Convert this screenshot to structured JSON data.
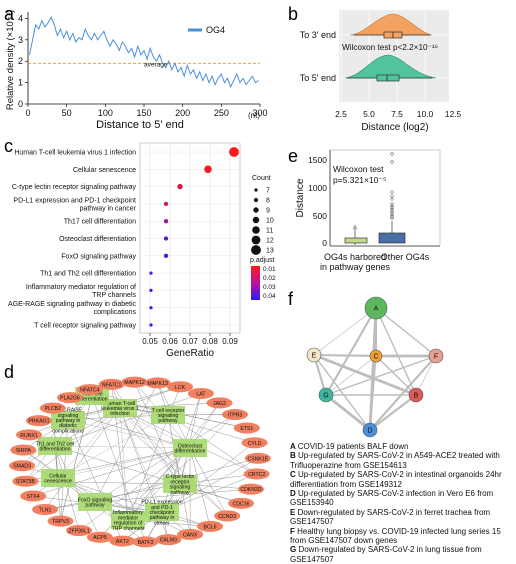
{
  "panels": {
    "a": {
      "letter": "a",
      "ylabel": "Relative density (×10⁻³)",
      "xlabel": "Distance to 5' end",
      "xunit": "(nt)",
      "legend": "OG4",
      "average_label": "average",
      "average_value": 1.9,
      "xticks": [
        0,
        50,
        100,
        150,
        200,
        250,
        300
      ],
      "yticks": [
        0,
        1,
        2,
        3,
        4
      ],
      "xlim": [
        0,
        300
      ],
      "ylim": [
        0,
        4.3
      ],
      "series": [
        [
          2,
          2.3
        ],
        [
          6,
          3.0
        ],
        [
          10,
          3.7
        ],
        [
          14,
          3.5
        ],
        [
          18,
          3.9
        ],
        [
          22,
          3.6
        ],
        [
          26,
          3.8
        ],
        [
          30,
          4.05
        ],
        [
          34,
          3.7
        ],
        [
          38,
          3.2
        ],
        [
          42,
          3.5
        ],
        [
          46,
          3.1
        ],
        [
          50,
          3.4
        ],
        [
          54,
          3.0
        ],
        [
          58,
          3.3
        ],
        [
          62,
          2.9
        ],
        [
          66,
          3.1
        ],
        [
          70,
          3.0
        ],
        [
          74,
          3.5
        ],
        [
          78,
          3.2
        ],
        [
          82,
          3.0
        ],
        [
          86,
          3.3
        ],
        [
          90,
          3.0
        ],
        [
          94,
          3.2
        ],
        [
          98,
          3.4
        ],
        [
          102,
          3.0
        ],
        [
          106,
          2.7
        ],
        [
          110,
          3.0
        ],
        [
          114,
          2.8
        ],
        [
          118,
          2.5
        ],
        [
          122,
          2.9
        ],
        [
          126,
          2.7
        ],
        [
          130,
          2.4
        ],
        [
          134,
          2.6
        ],
        [
          138,
          2.2
        ],
        [
          142,
          2.7
        ],
        [
          146,
          2.3
        ],
        [
          150,
          2.5
        ],
        [
          154,
          2.1
        ],
        [
          158,
          2.6
        ],
        [
          162,
          2.2
        ],
        [
          166,
          2.0
        ],
        [
          170,
          2.3
        ],
        [
          174,
          1.9
        ],
        [
          178,
          1.7
        ],
        [
          182,
          2.0
        ],
        [
          186,
          1.6
        ],
        [
          190,
          1.9
        ],
        [
          194,
          1.5
        ],
        [
          198,
          1.7
        ],
        [
          202,
          1.3
        ],
        [
          206,
          1.8
        ],
        [
          210,
          1.4
        ],
        [
          214,
          1.6
        ],
        [
          218,
          1.2
        ],
        [
          222,
          1.5
        ],
        [
          226,
          1.1
        ],
        [
          230,
          1.4
        ],
        [
          234,
          1.0
        ],
        [
          238,
          1.3
        ],
        [
          242,
          0.9
        ],
        [
          246,
          1.2
        ],
        [
          250,
          1.4
        ],
        [
          254,
          1.0
        ],
        [
          258,
          1.2
        ],
        [
          262,
          0.8
        ],
        [
          266,
          1.1
        ],
        [
          270,
          1.4
        ],
        [
          274,
          1.0
        ],
        [
          278,
          1.2
        ],
        [
          282,
          0.9
        ],
        [
          286,
          1.1
        ],
        [
          290,
          1.3
        ],
        [
          294,
          1.0
        ],
        [
          298,
          1.1
        ]
      ]
    },
    "b": {
      "letter": "b",
      "row_labels": [
        "To 3' end",
        "To 5' end"
      ],
      "stat_text": "Wilcoxon test p<2.2×10⁻¹⁶",
      "xlabel": "Distance (log2)",
      "xticks": [
        "2.5",
        "5.0",
        "7.5",
        "10.0",
        "12.5"
      ],
      "colors": {
        "to3": "#f4a261",
        "to5": "#52c49b"
      }
    },
    "c": {
      "letter": "c",
      "xlabel": "GeneRatio",
      "xticks": [
        "0.05",
        "0.06",
        "0.07",
        "0.08",
        "0.09"
      ],
      "xlim": [
        0.045,
        0.095
      ],
      "count_title": "Count",
      "count_values": [
        "7",
        "8",
        "9",
        "10",
        "11",
        "12",
        "13"
      ],
      "padj_title": "p.adjust",
      "padj_ticks": [
        "0.01",
        "0.02",
        "0.03",
        "0.04"
      ],
      "terms": [
        {
          "label": "Human T-cell leukemia virus 1 infection",
          "ratio": 0.092,
          "count": 13,
          "padj": 0.002
        },
        {
          "label": "Cellular senescence",
          "ratio": 0.079,
          "count": 11,
          "padj": 0.004
        },
        {
          "label": "C-type lectin receptor signaling pathway",
          "ratio": 0.065,
          "count": 9,
          "padj": 0.008
        },
        {
          "label": "PD-L1 expression and PD-1 checkpoint pathway in cancer",
          "ratio": 0.058,
          "count": 8,
          "padj": 0.012
        },
        {
          "label": "Th17 cell differentiation",
          "ratio": 0.058,
          "count": 8,
          "padj": 0.022
        },
        {
          "label": "Osteoclast differentiation",
          "ratio": 0.058,
          "count": 8,
          "padj": 0.035
        },
        {
          "label": "FoxO signaling pathway",
          "ratio": 0.058,
          "count": 8,
          "padj": 0.04
        },
        {
          "label": "Th1 and Th2 cell differentiation",
          "ratio": 0.0505,
          "count": 7,
          "padj": 0.041
        },
        {
          "label": "Inflammatory mediator regulation of TRP channels",
          "ratio": 0.0505,
          "count": 7,
          "padj": 0.042
        },
        {
          "label": "AGE-RAGE signaling pathway in diabetic complications",
          "ratio": 0.0505,
          "count": 7,
          "padj": 0.043
        },
        {
          "label": "T cell receptor signaling pathway",
          "ratio": 0.0505,
          "count": 7,
          "padj": 0.044
        }
      ]
    },
    "d": {
      "letter": "d",
      "genes": [
        "MAPK13",
        "LCK",
        "LAT",
        "JAG2",
        "ITPR3",
        "ETS1",
        "CYLD",
        "CSNK1E",
        "CRTC2",
        "CDKN2D",
        "CDC16",
        "CCND3",
        "BCL6",
        "CANX",
        "CALM3",
        "BATF3",
        "AKT2",
        "ACP5",
        "ZFP36L1",
        "TRPV3",
        "TLN1",
        "STK4",
        "STAT5B",
        "SMAD3",
        "SIRPA",
        "RUNX1",
        "PRKAG1",
        "PLCB2",
        "PLA2G6",
        "NFATC4",
        "NFATC1",
        "MAPK12"
      ],
      "pathways": [
        "Human T-cell leukemia virus 1 infection",
        "T cell receptor signaling pathway",
        "Osteoclast differentiation",
        "C-type lectin receptor signaling pathway",
        "PD-L1 expression and PD-1 checkpoint pathway in cancer",
        "Inflammatory mediator regulation of TRP channels",
        "FoxO signaling pathway",
        "Cellular senescence",
        "Th1 and Th2 cell differentiation",
        "AGE-RAGE signaling pathway in diabetic complications",
        "Th17 cell differentiation"
      ]
    },
    "e": {
      "letter": "e",
      "ylabel": "Distance",
      "yticks": [
        "0",
        "500",
        "1000",
        "1500"
      ],
      "stat_line1": "Wilcoxon test",
      "stat_line2": "p=5.321×10⁻⁵",
      "cat1_line1": "OG4s harbored",
      "cat1_line2": "in pathway genes",
      "cat2": "Other OG4s",
      "colors": {
        "g1": "#c5d98a",
        "g2": "#4a6fa5"
      }
    },
    "f": {
      "letter": "f",
      "nodes": [
        {
          "id": "A",
          "color": "#5cb85c"
        },
        {
          "id": "B",
          "color": "#e05a5a"
        },
        {
          "id": "C",
          "color": "#f0a030"
        },
        {
          "id": "D",
          "color": "#4a90d9"
        },
        {
          "id": "E",
          "color": "#f5e6c8"
        },
        {
          "id": "F",
          "color": "#e8a090"
        },
        {
          "id": "G",
          "color": "#3cb8a0"
        }
      ],
      "legend": [
        {
          "k": "A",
          "text": "COVID-19 patients BALF down"
        },
        {
          "k": "B",
          "text": "Up-regulated by SARS-CoV-2 in A549-ACE2 treated with Trifluoperazine from GSE154613"
        },
        {
          "k": "C",
          "text": "Up-regulated by SARS-CoV-2 in intestinal organoids 24hr differentiation from GSE149312"
        },
        {
          "k": "D",
          "text": "Up-regulated by SARS-CoV-2 infection in Vero E6 from GSE153940"
        },
        {
          "k": "E",
          "text": "Down-regulated by SARS-CoV-2 in ferret trachea from GSE147507"
        },
        {
          "k": "F",
          "text": "Healthy lung biopsy vs. COVID-19 infected lung series 15 from GSE147507 down genes"
        },
        {
          "k": "G",
          "text": "Down-regulated by SARS-CoV-2 in lung tissue from GSE147507"
        }
      ]
    }
  }
}
